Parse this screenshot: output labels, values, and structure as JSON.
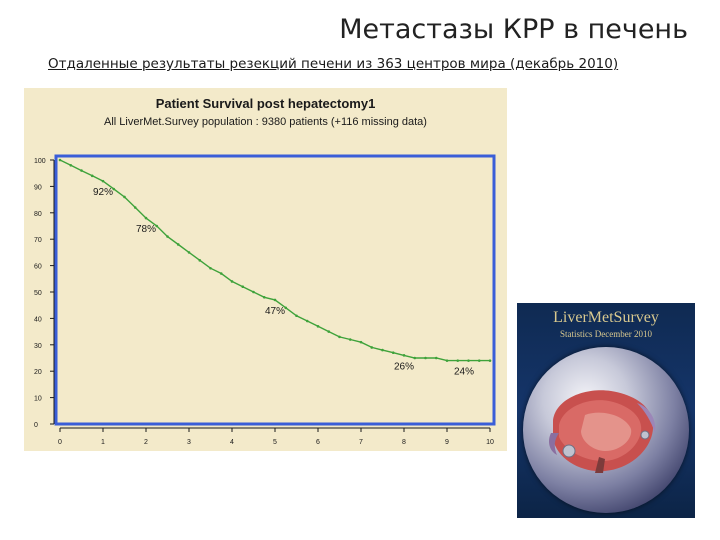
{
  "slide": {
    "title": "Метастазы КРР в печень",
    "subtitle": "Отдаленные результаты резекций печени из 363 центров мира (декабрь 2010)"
  },
  "cover": {
    "title": "LiverMetSurvey",
    "subtitle": "Statistics December 2010"
  },
  "colors": {
    "panel_bg": "#f3eaca",
    "frame": "#3a5ed8",
    "curve": "#3ea23a",
    "axis": "#1a1a1a"
  },
  "chart_data": {
    "type": "line",
    "title": "Patient Survival post hepatectomy1",
    "subtitle": "All LiverMet.Survey population : 9380 patients (+116 missing data)",
    "xlabel": "",
    "ylabel": "",
    "xlim": [
      0,
      10
    ],
    "ylim": [
      0,
      100
    ],
    "x_ticks": [
      "0",
      "1",
      "2",
      "3",
      "4",
      "5",
      "6",
      "7",
      "8",
      "9",
      "10"
    ],
    "y_ticks": [
      "0",
      "10",
      "20",
      "30",
      "40",
      "50",
      "60",
      "70",
      "80",
      "90",
      "100"
    ],
    "grid": false,
    "series": [
      {
        "x": [
          0,
          0.25,
          0.5,
          0.75,
          1,
          1.25,
          1.5,
          1.75,
          2,
          2.25,
          2.5,
          2.75,
          3,
          3.25,
          3.5,
          3.75,
          4,
          4.25,
          4.5,
          4.75,
          5,
          5.25,
          5.5,
          5.75,
          6,
          6.25,
          6.5,
          6.75,
          7,
          7.25,
          7.5,
          7.75,
          8,
          8.25,
          8.5,
          8.75,
          9,
          9.25,
          9.5,
          9.75,
          10
        ],
        "y": [
          100,
          98,
          96,
          94,
          92,
          89,
          86,
          82,
          78,
          75,
          71,
          68,
          65,
          62,
          59,
          57,
          54,
          52,
          50,
          48,
          47,
          44,
          41,
          39,
          37,
          35,
          33,
          32,
          31,
          29,
          28,
          27,
          26,
          25,
          25,
          25,
          24,
          24,
          24,
          24,
          24
        ]
      }
    ],
    "annotations": [
      {
        "x": 1,
        "y": 92,
        "text": "92%"
      },
      {
        "x": 2,
        "y": 78,
        "text": "78%"
      },
      {
        "x": 5,
        "y": 47,
        "text": "47%"
      },
      {
        "x": 8,
        "y": 26,
        "text": "26%"
      },
      {
        "x": 10,
        "y": 24,
        "text": "24%"
      }
    ]
  }
}
